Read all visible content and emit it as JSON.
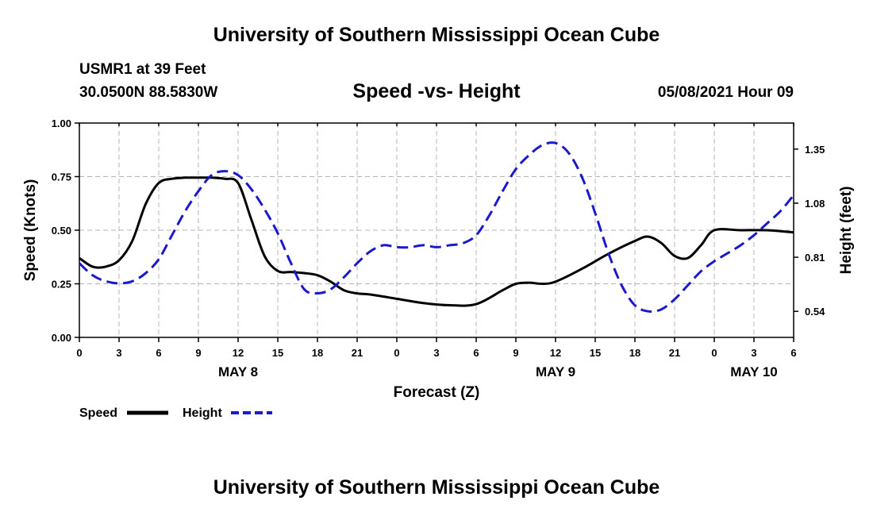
{
  "header": {
    "title": "University of Southern Mississippi Ocean Cube",
    "station": "USMR1 at 39 Feet",
    "coords": "30.0500N  88.5830W",
    "chart_title": "Speed -vs- Height",
    "datetime": "05/08/2021 Hour 09"
  },
  "footer": {
    "title": "University of Southern Mississippi Ocean Cube"
  },
  "colors": {
    "speed": "#000000",
    "height": "#1a1acc",
    "grid": "#b4b4b4"
  },
  "chart_data": {
    "type": "line",
    "title": "Speed -vs- Height",
    "xlabel": "Forecast (Z)",
    "ylabel": "Speed (Knots)",
    "ylabel_right": "Height (feet)",
    "x_hours_from_start": [
      0,
      54
    ],
    "x_ticks": [
      {
        "h": 0,
        "label": "0"
      },
      {
        "h": 3,
        "label": "3"
      },
      {
        "h": 6,
        "label": "6"
      },
      {
        "h": 9,
        "label": "9"
      },
      {
        "h": 12,
        "label": "12"
      },
      {
        "h": 15,
        "label": "15"
      },
      {
        "h": 18,
        "label": "18"
      },
      {
        "h": 21,
        "label": "21"
      },
      {
        "h": 24,
        "label": "0"
      },
      {
        "h": 27,
        "label": "3"
      },
      {
        "h": 30,
        "label": "6"
      },
      {
        "h": 33,
        "label": "9"
      },
      {
        "h": 36,
        "label": "12"
      },
      {
        "h": 39,
        "label": "15"
      },
      {
        "h": 42,
        "label": "18"
      },
      {
        "h": 45,
        "label": "21"
      },
      {
        "h": 48,
        "label": "0"
      },
      {
        "h": 51,
        "label": "3"
      },
      {
        "h": 54,
        "label": "6"
      }
    ],
    "day_labels": [
      {
        "h": 12,
        "label": "MAY 8"
      },
      {
        "h": 36,
        "label": "MAY 9"
      },
      {
        "h": 51,
        "label": "MAY 10"
      }
    ],
    "ylim_left": [
      0,
      1.0
    ],
    "yticks_left": [
      {
        "v": 0.0,
        "label": "0.00"
      },
      {
        "v": 0.25,
        "label": "0.25"
      },
      {
        "v": 0.5,
        "label": "0.50"
      },
      {
        "v": 0.75,
        "label": "0.75"
      },
      {
        "v": 1.0,
        "label": "1.00"
      }
    ],
    "ylim_right": [
      0.41,
      1.48
    ],
    "yticks_right": [
      {
        "v": 0.54,
        "label": "0.54"
      },
      {
        "v": 0.81,
        "label": "0.81"
      },
      {
        "v": 1.08,
        "label": "1.08"
      },
      {
        "v": 1.35,
        "label": "1.35"
      }
    ],
    "series": [
      {
        "name": "Speed",
        "axis": "left",
        "style": "solid",
        "x": [
          0,
          1,
          2,
          3,
          4,
          5,
          6,
          7,
          8,
          9,
          10,
          11,
          12,
          13,
          14,
          15,
          16,
          17,
          18,
          19,
          20,
          21,
          22,
          24,
          26,
          28,
          30,
          32,
          33,
          34,
          35,
          36,
          38,
          40,
          42,
          43,
          44,
          45,
          46,
          47,
          48,
          50,
          52,
          54
        ],
        "values": [
          0.37,
          0.33,
          0.33,
          0.36,
          0.45,
          0.62,
          0.72,
          0.74,
          0.745,
          0.745,
          0.745,
          0.74,
          0.72,
          0.55,
          0.38,
          0.31,
          0.305,
          0.3,
          0.29,
          0.26,
          0.22,
          0.205,
          0.2,
          0.18,
          0.16,
          0.15,
          0.155,
          0.22,
          0.25,
          0.255,
          0.25,
          0.26,
          0.32,
          0.39,
          0.45,
          0.47,
          0.44,
          0.38,
          0.37,
          0.43,
          0.5,
          0.5,
          0.5,
          0.49
        ]
      },
      {
        "name": "Height",
        "axis": "right",
        "style": "dashed",
        "x": [
          0,
          1,
          2,
          3,
          4,
          5,
          6,
          7,
          8,
          9,
          10,
          11,
          12,
          13,
          14,
          15,
          16,
          17,
          18,
          19,
          20,
          21,
          22,
          23,
          24,
          25,
          26,
          27,
          28,
          29,
          30,
          31,
          32,
          33,
          34,
          35,
          36,
          37,
          38,
          39,
          40,
          41,
          42,
          43,
          44,
          45,
          46,
          47,
          48,
          49,
          50,
          51,
          52,
          53,
          54
        ],
        "values": [
          0.78,
          0.72,
          0.69,
          0.68,
          0.69,
          0.73,
          0.8,
          0.92,
          1.04,
          1.14,
          1.22,
          1.24,
          1.22,
          1.15,
          1.05,
          0.93,
          0.78,
          0.65,
          0.63,
          0.65,
          0.71,
          0.78,
          0.84,
          0.87,
          0.86,
          0.86,
          0.87,
          0.86,
          0.87,
          0.88,
          0.92,
          1.02,
          1.14,
          1.25,
          1.32,
          1.37,
          1.38,
          1.33,
          1.21,
          1.03,
          0.83,
          0.67,
          0.57,
          0.54,
          0.55,
          0.6,
          0.67,
          0.74,
          0.79,
          0.83,
          0.87,
          0.92,
          0.98,
          1.04,
          1.12
        ]
      }
    ],
    "legend": [
      {
        "name": "Speed",
        "style": "solid"
      },
      {
        "name": "Height",
        "style": "dashed"
      }
    ]
  }
}
